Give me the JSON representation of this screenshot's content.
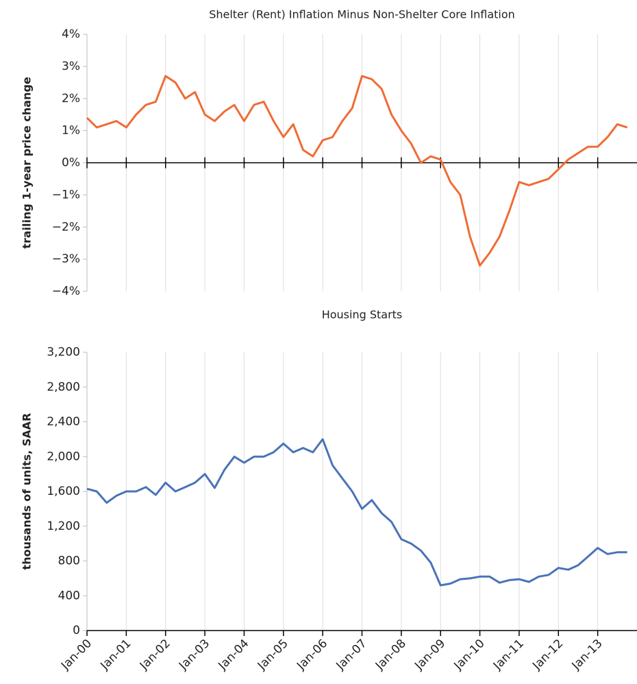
{
  "chart_data": [
    {
      "type": "line",
      "title": "Shelter (Rent) Inflation Minus Non-Shelter Core Inflation",
      "y_label": "trailing 1-year price change",
      "series": [
        {
          "color": "#ef6c35",
          "values": [
            1.4,
            1.1,
            1.2,
            1.3,
            1.1,
            1.5,
            1.8,
            1.9,
            2.7,
            2.5,
            2.0,
            2.2,
            1.5,
            1.3,
            1.6,
            1.8,
            1.3,
            1.8,
            1.9,
            1.3,
            0.8,
            1.2,
            0.4,
            0.2,
            0.7,
            0.8,
            1.3,
            1.7,
            2.7,
            2.6,
            2.3,
            1.5,
            1.0,
            0.6,
            0.0,
            0.2,
            0.1,
            -0.6,
            -1.0,
            -2.3,
            -3.2,
            -2.8,
            -2.3,
            -1.5,
            -0.6,
            -0.7,
            -0.6,
            -0.5,
            -0.2,
            0.1,
            0.3,
            0.5,
            0.5,
            0.8,
            1.2,
            1.1
          ]
        }
      ],
      "ylim": [
        -4,
        4
      ],
      "yticks": [
        {
          "value": -4,
          "label": "−4%"
        },
        {
          "value": -3,
          "label": "−3%"
        },
        {
          "value": -2,
          "label": "−2%"
        },
        {
          "value": -1,
          "label": "−1%"
        },
        {
          "value": 0,
          "label": "0%"
        },
        {
          "value": 1,
          "label": "1%"
        },
        {
          "value": 2,
          "label": "2%"
        },
        {
          "value": 3,
          "label": "3%"
        },
        {
          "value": 4,
          "label": "4%"
        }
      ],
      "grid": true
    },
    {
      "type": "line",
      "title": "Housing Starts",
      "y_label": "thousands of units, SAAR",
      "categories": [
        "Jan-00",
        null,
        null,
        null,
        "Jan-01",
        null,
        null,
        null,
        "Jan-02",
        null,
        null,
        null,
        "Jan-03",
        null,
        null,
        null,
        "Jan-04",
        null,
        null,
        null,
        "Jan-05",
        null,
        null,
        null,
        "Jan-06",
        null,
        null,
        null,
        "Jan-07",
        null,
        null,
        null,
        "Jan-08",
        null,
        null,
        null,
        "Jan-09",
        null,
        null,
        null,
        "Jan-10",
        null,
        null,
        null,
        "Jan-11",
        null,
        null,
        null,
        "Jan-12",
        null,
        null,
        null,
        "Jan-13",
        null,
        null,
        null
      ],
      "series": [
        {
          "color": "#4a73b8",
          "values": [
            1630,
            1600,
            1470,
            1550,
            1600,
            1600,
            1650,
            1560,
            1700,
            1600,
            1650,
            1700,
            1800,
            1640,
            1850,
            2000,
            1930,
            2000,
            2000,
            2050,
            2150,
            2050,
            2100,
            2050,
            2200,
            1900,
            1750,
            1600,
            1400,
            1500,
            1350,
            1250,
            1050,
            1000,
            920,
            780,
            520,
            540,
            590,
            600,
            620,
            620,
            550,
            580,
            590,
            560,
            620,
            640,
            720,
            700,
            750,
            850,
            950,
            880,
            900,
            900
          ]
        }
      ],
      "ylim": [
        0,
        3200
      ],
      "yticks": [
        0,
        400,
        800,
        {
          "value": 1200,
          "label": "1,200"
        },
        {
          "value": 1600,
          "label": "1,600"
        },
        {
          "value": 2000,
          "label": "2,000"
        },
        {
          "value": 2400,
          "label": "2,400"
        },
        {
          "value": 2800,
          "label": "2,800"
        },
        {
          "value": 3200,
          "label": "3,200"
        }
      ],
      "grid": true
    }
  ]
}
